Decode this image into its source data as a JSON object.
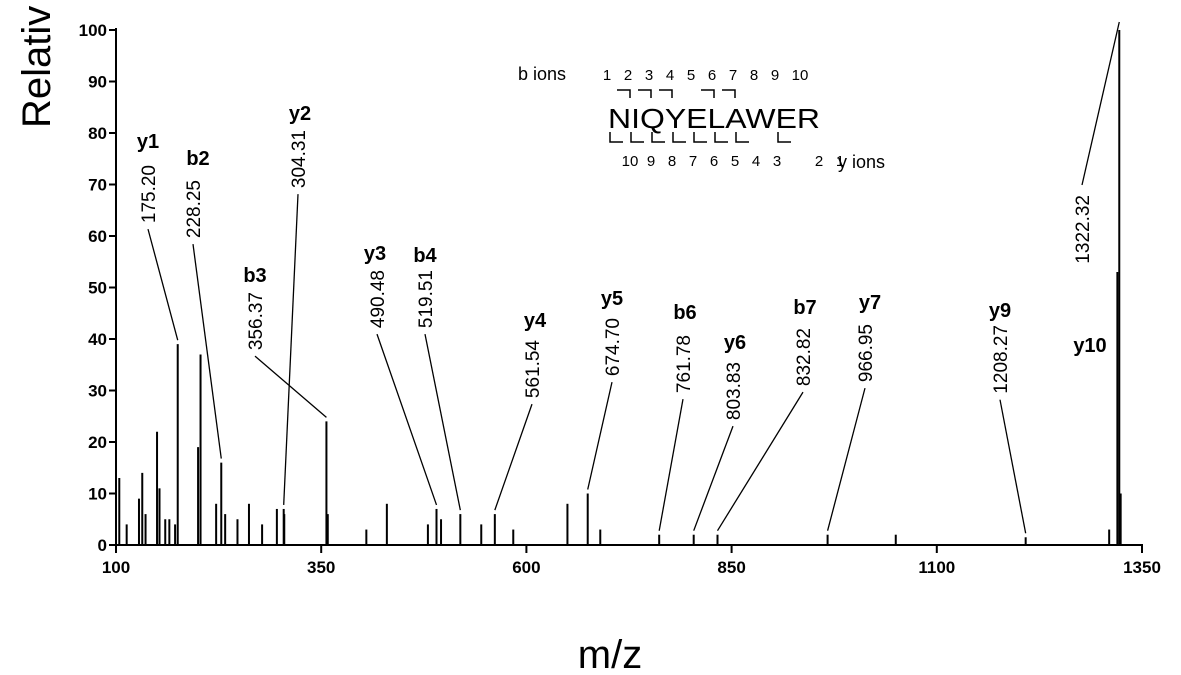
{
  "chart_data": {
    "type": "spectrum",
    "x_label": "m/z",
    "y_label": "Relativ",
    "xlim": [
      100,
      1350
    ],
    "xticks": [
      100,
      350,
      600,
      850,
      1100,
      1350
    ],
    "ylim": [
      0,
      100
    ],
    "yticks": [
      0,
      10,
      20,
      30,
      40,
      50,
      60,
      70,
      80,
      90,
      100
    ],
    "color": "#000000",
    "x": [
      100,
      104,
      113,
      128,
      132,
      136,
      150,
      153,
      160,
      165,
      172,
      200,
      203,
      222,
      233,
      248,
      262,
      278,
      296,
      305,
      358,
      405,
      430,
      480,
      496,
      545,
      584,
      650,
      690,
      1050,
      1310,
      1320,
      1324
    ],
    "values": [
      20,
      13,
      4,
      9,
      14,
      6,
      22,
      11,
      5,
      5,
      4,
      19,
      37,
      8,
      6,
      5,
      8,
      4,
      7,
      6,
      6,
      3,
      8,
      4,
      5,
      4,
      3,
      8,
      3,
      2,
      3,
      53,
      10
    ],
    "annotations": [
      {
        "ion": "y1",
        "x": 175.2,
        "label": "175.20",
        "y": 39
      },
      {
        "ion": "b2",
        "x": 228.25,
        "label": "228.25",
        "y": 16
      },
      {
        "ion": "y2",
        "x": 304.31,
        "label": "304.31",
        "y": 7
      },
      {
        "ion": "b3",
        "x": 356.37,
        "label": "356.37",
        "y": 24
      },
      {
        "ion": "y3",
        "x": 490.48,
        "label": "490.48",
        "y": 7
      },
      {
        "ion": "b4",
        "x": 519.51,
        "label": "519.51",
        "y": 6
      },
      {
        "ion": "y4",
        "x": 561.54,
        "label": "561.54",
        "y": 6
      },
      {
        "ion": "y5",
        "x": 674.7,
        "label": "674.70",
        "y": 10
      },
      {
        "ion": "b6",
        "x": 761.78,
        "label": "761.78",
        "y": 2
      },
      {
        "ion": "y6",
        "x": 803.83,
        "label": "803.83",
        "y": 2
      },
      {
        "ion": "b7",
        "x": 832.82,
        "label": "832.82",
        "y": 2
      },
      {
        "ion": "y7",
        "x": 966.95,
        "label": "966.95",
        "y": 2
      },
      {
        "ion": "y9",
        "x": 1208.27,
        "label": "1208.27",
        "y": 1.5
      },
      {
        "ion": "y10",
        "x": 1322.32,
        "label": "1322.32",
        "y": 100
      }
    ],
    "sequence": {
      "b_label": "b ions",
      "y_label": "y ions",
      "peptide": "NIQYELAWER",
      "b_numbers": [
        1,
        2,
        3,
        4,
        5,
        6,
        7,
        8,
        9,
        10
      ],
      "y_numbers": [
        10,
        9,
        8,
        7,
        6,
        5,
        4,
        3,
        2,
        1
      ]
    }
  }
}
